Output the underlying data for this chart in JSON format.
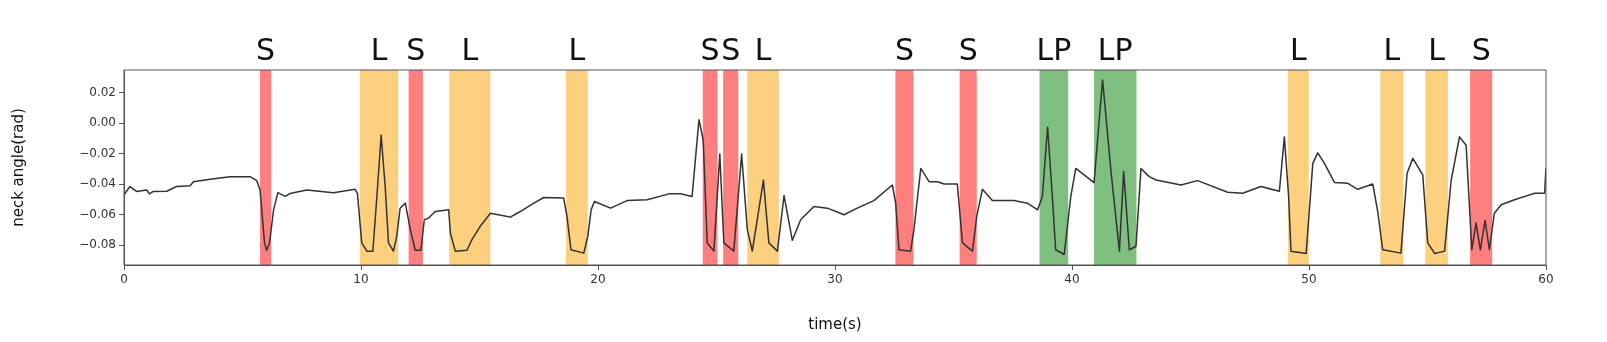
{
  "chart_data": {
    "type": "line",
    "xlabel": "time(s)",
    "ylabel": "neck angle(rad)",
    "xlim": [
      0,
      60
    ],
    "xticks": [
      0,
      10,
      20,
      30,
      40,
      50,
      60
    ],
    "ylim": [
      -0.093,
      0.035
    ],
    "yticks": [
      {
        "value": -0.08,
        "label": "−0.08"
      },
      {
        "value": -0.06,
        "label": "−0.06"
      },
      {
        "value": -0.04,
        "label": "−0.04"
      },
      {
        "value": -0.02,
        "label": "−0.02"
      },
      {
        "value": 0,
        "label": "0.00"
      },
      {
        "value": 0.02,
        "label": "0.02"
      }
    ],
    "grid": false,
    "legend": false,
    "marker": "none",
    "line_style": "solid",
    "series": [
      {
        "color": "#333333",
        "x": [
          0,
          0.25,
          0.53,
          0.96,
          1.07,
          1.24,
          1.8,
          2.22,
          2.79,
          2.93,
          3.63,
          4.48,
          5.32,
          5.6,
          5.74,
          5.93,
          6.02,
          6.14,
          6.31,
          6.49,
          6.8,
          7.01,
          7.71,
          8.84,
          9.75,
          9.85,
          10.03,
          10.25,
          10.5,
          10.67,
          10.85,
          11.02,
          11.16,
          11.37,
          11.51,
          11.65,
          11.87,
          12.08,
          12.29,
          12.53,
          12.67,
          12.85,
          13.13,
          13.7,
          13.77,
          13.98,
          14.47,
          14.68,
          15.03,
          15.46,
          16.3,
          16.72,
          17.29,
          17.71,
          18.55,
          18.69,
          18.86,
          19.4,
          19.57,
          19.71,
          19.85,
          20.53,
          21.23,
          22.07,
          22.99,
          23.48,
          23.97,
          24.26,
          24.44,
          24.61,
          24.89,
          25.14,
          25.31,
          25.73,
          26.06,
          26.3,
          26.51,
          26.98,
          27.21,
          27.57,
          27.85,
          28.2,
          28.55,
          29.11,
          29.68,
          30.38,
          30.94,
          31.64,
          32.42,
          32.56,
          32.7,
          33.19,
          33.33,
          33.62,
          33.97,
          34.32,
          34.6,
          35.16,
          35.38,
          35.8,
          35.98,
          36.22,
          36.64,
          37.56,
          38.12,
          38.55,
          38.75,
          38.97,
          39.17,
          39.31,
          39.67,
          39.95,
          40.16,
          40.93,
          41.29,
          41.64,
          42.0,
          42.18,
          42.42,
          42.7,
          42.91,
          43.26,
          43.55,
          44.6,
          45.3,
          46.57,
          47.2,
          47.97,
          48.75,
          48.96,
          49.14,
          49.24,
          49.88,
          50.16,
          50.37,
          50.65,
          51.08,
          51.64,
          52.06,
          52.69,
          52.9,
          53.11,
          53.88,
          54.14,
          54.38,
          54.8,
          55.01,
          55.3,
          55.72,
          56.0,
          56.35,
          56.63,
          56.87,
          57.05,
          57.23,
          57.43,
          57.61,
          57.82,
          58.11,
          58.67,
          59.52,
          59.94,
          60
        ],
        "values": [
          -0.047,
          -0.0415,
          -0.0447,
          -0.0437,
          -0.0463,
          -0.0447,
          -0.0446,
          -0.0415,
          -0.041,
          -0.0383,
          -0.0367,
          -0.035,
          -0.035,
          -0.0376,
          -0.0437,
          -0.0785,
          -0.0833,
          -0.0785,
          -0.057,
          -0.0455,
          -0.048,
          -0.046,
          -0.0437,
          -0.0455,
          -0.0433,
          -0.046,
          -0.0785,
          -0.0839,
          -0.0839,
          -0.048,
          -0.0078,
          -0.0415,
          -0.0785,
          -0.0839,
          -0.0741,
          -0.0557,
          -0.0524,
          -0.0698,
          -0.0833,
          -0.0833,
          -0.0633,
          -0.0622,
          -0.0579,
          -0.0568,
          -0.072,
          -0.0839,
          -0.0833,
          -0.0763,
          -0.0676,
          -0.059,
          -0.0616,
          -0.0579,
          -0.0524,
          -0.0487,
          -0.0491,
          -0.061,
          -0.083,
          -0.0852,
          -0.0741,
          -0.0568,
          -0.0513,
          -0.0557,
          -0.0507,
          -0.0502,
          -0.0463,
          -0.0463,
          -0.048,
          0.0024,
          -0.0111,
          -0.0785,
          -0.0839,
          -0.0202,
          -0.0785,
          -0.0839,
          -0.0202,
          -0.0698,
          -0.0839,
          -0.0372,
          -0.0785,
          -0.0839,
          -0.0474,
          -0.0768,
          -0.0633,
          -0.0546,
          -0.0557,
          -0.06,
          -0.0557,
          -0.0507,
          -0.0405,
          -0.0524,
          -0.083,
          -0.0839,
          -0.0698,
          -0.0296,
          -0.0383,
          -0.0383,
          -0.0398,
          -0.0398,
          -0.0785,
          -0.0839,
          -0.0611,
          -0.0433,
          -0.0507,
          -0.0507,
          -0.0524,
          -0.0568,
          -0.048,
          -0.0024,
          -0.048,
          -0.083,
          -0.0861,
          -0.048,
          -0.0296,
          -0.0389,
          0.0285,
          -0.0307,
          -0.0839,
          -0.0317,
          -0.083,
          -0.0807,
          -0.0296,
          -0.035,
          -0.0372,
          -0.0405,
          -0.0376,
          -0.0452,
          -0.0459,
          -0.0415,
          -0.0446,
          -0.0089,
          -0.048,
          -0.0839,
          -0.0854,
          -0.0263,
          -0.0194,
          -0.0263,
          -0.0389,
          -0.0394,
          -0.0433,
          -0.0398,
          -0.0579,
          -0.083,
          -0.0852,
          -0.0328,
          -0.023,
          -0.0339,
          -0.0785,
          -0.0854,
          -0.0839,
          -0.0372,
          -0.0089,
          -0.0144,
          -0.083,
          -0.0655,
          -0.083,
          -0.0638,
          -0.083,
          -0.059,
          -0.0535,
          -0.0502,
          -0.0459,
          -0.0459,
          -0.0294
        ]
      }
    ],
    "bands": [
      {
        "axis": "x",
        "from": 5.74,
        "to": 6.21,
        "label": "S",
        "color": "#ff7f7f"
      },
      {
        "axis": "x",
        "from": 9.95,
        "to": 11.57,
        "label": "L",
        "color": "#fdd07f"
      },
      {
        "axis": "x",
        "from": 12.01,
        "to": 12.61,
        "label": "S",
        "color": "#ff7f7f"
      },
      {
        "axis": "x",
        "from": 13.72,
        "to": 15.46,
        "label": "L",
        "color": "#fdd07f"
      },
      {
        "axis": "x",
        "from": 18.65,
        "to": 19.57,
        "label": "L",
        "color": "#fdd07f"
      },
      {
        "axis": "x",
        "from": 24.42,
        "to": 25.04,
        "label": "S",
        "color": "#ff7f7f"
      },
      {
        "axis": "x",
        "from": 25.28,
        "to": 25.92,
        "label": "S",
        "color": "#ff7f7f"
      },
      {
        "axis": "x",
        "from": 26.3,
        "to": 27.63,
        "label": "L",
        "color": "#fdd07f"
      },
      {
        "axis": "x",
        "from": 32.55,
        "to": 33.31,
        "label": "S",
        "color": "#ff7f7f"
      },
      {
        "axis": "x",
        "from": 35.26,
        "to": 35.98,
        "label": "S",
        "color": "#ff7f7f"
      },
      {
        "axis": "x",
        "from": 38.63,
        "to": 39.84,
        "label": "LP",
        "color": "#7fbf7f"
      },
      {
        "axis": "x",
        "from": 40.93,
        "to": 42.72,
        "label": "LP",
        "color": "#7fbf7f"
      },
      {
        "axis": "x",
        "from": 49.11,
        "to": 49.99,
        "label": "L",
        "color": "#fdd07f"
      },
      {
        "axis": "x",
        "from": 53.01,
        "to": 53.98,
        "label": "L",
        "color": "#fdd07f"
      },
      {
        "axis": "x",
        "from": 54.91,
        "to": 55.86,
        "label": "L",
        "color": "#fdd07f"
      },
      {
        "axis": "x",
        "from": 56.8,
        "to": 57.73,
        "label": "S",
        "color": "#ff7f7f"
      }
    ]
  }
}
